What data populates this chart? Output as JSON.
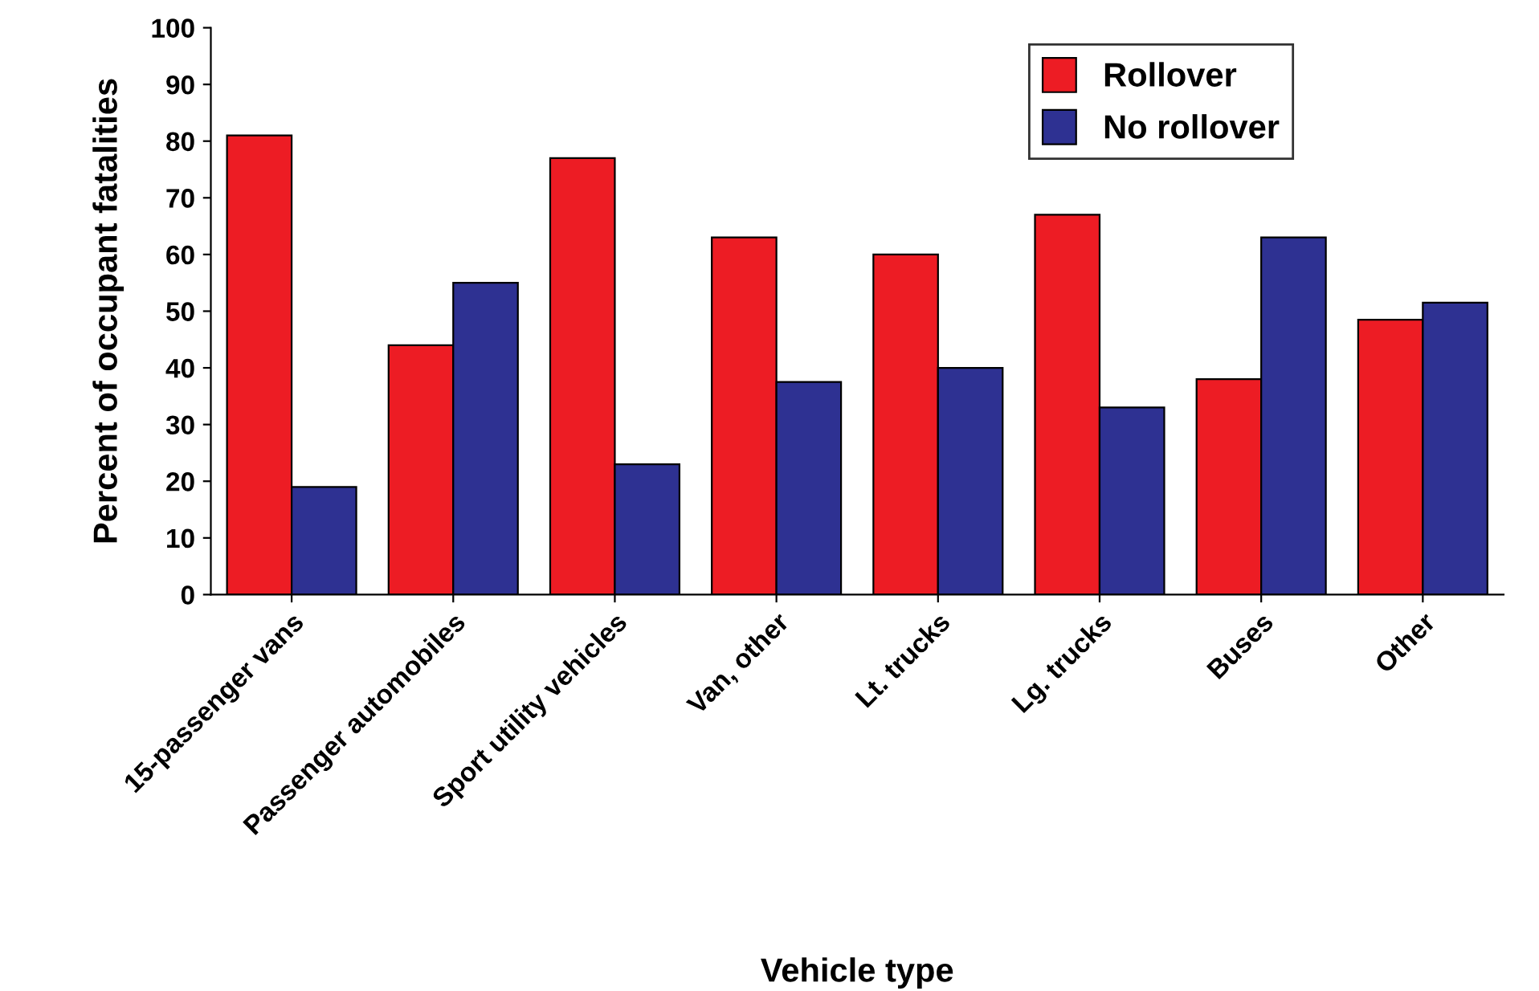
{
  "chart_data": {
    "type": "bar",
    "xlabel": "Vehicle type",
    "ylabel": "Percent of occupant fatalities",
    "categories": [
      "15-passenger vans",
      "Passenger automobiles",
      "Sport utility vehicles",
      "Van, other",
      "Lt. trucks",
      "Lg. trucks",
      "Buses",
      "Other"
    ],
    "series": [
      {
        "name": "Rollover",
        "color": "#ed1c24",
        "values": [
          81,
          44,
          77,
          63,
          60,
          67,
          38,
          48.5
        ]
      },
      {
        "name": "No rollover",
        "color": "#2e3192",
        "values": [
          19,
          55,
          23,
          37.5,
          40,
          33,
          63,
          51.5
        ]
      }
    ],
    "ylim": [
      0,
      100
    ],
    "yticks": [
      0,
      10,
      20,
      30,
      40,
      50,
      60,
      70,
      80,
      90,
      100
    ],
    "grid": false,
    "legend": "top right"
  }
}
